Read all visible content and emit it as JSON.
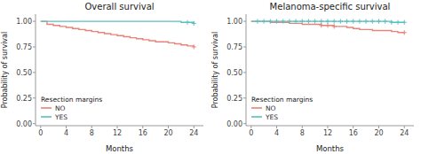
{
  "chart_data": [
    {
      "type": "step",
      "title": "Overall survival",
      "x_label": "Months",
      "y_label": "Probability of survival",
      "x": [
        0,
        1,
        2,
        3,
        4,
        5,
        6,
        7,
        8,
        9,
        10,
        11,
        12,
        13,
        14,
        15,
        16,
        17,
        18,
        19,
        20,
        21,
        22,
        23,
        24
      ],
      "series": [
        {
          "name": "NO",
          "color": "#E8837A",
          "values": [
            1.0,
            0.97,
            0.96,
            0.95,
            0.94,
            0.93,
            0.92,
            0.91,
            0.9,
            0.89,
            0.88,
            0.87,
            0.86,
            0.85,
            0.84,
            0.83,
            0.82,
            0.81,
            0.8,
            0.8,
            0.79,
            0.78,
            0.77,
            0.76,
            0.75
          ],
          "censor_x": [
            24
          ],
          "censor_values": [
            0.75
          ]
        },
        {
          "name": "YES",
          "color": "#5BBFBF",
          "values": [
            1.0,
            1.0,
            1.0,
            1.0,
            1.0,
            1.0,
            1.0,
            1.0,
            1.0,
            1.0,
            1.0,
            1.0,
            1.0,
            1.0,
            1.0,
            1.0,
            1.0,
            1.0,
            1.0,
            1.0,
            1.0,
            1.0,
            0.99,
            0.99,
            0.98
          ],
          "censor_x": [
            23,
            24
          ],
          "censor_values": [
            0.99,
            0.98
          ]
        }
      ],
      "legend_title": "Resection margins",
      "legend": "lower left",
      "xlim": [
        -0.8,
        25.5
      ],
      "xticks": [
        0,
        4,
        8,
        12,
        16,
        20,
        24
      ],
      "ylim": [
        -0.02,
        1.07
      ],
      "yticks": [
        {
          "value": 0.0,
          "label": "0.00"
        },
        {
          "value": 0.25,
          "label": "0.25"
        },
        {
          "value": 0.5,
          "label": "0.50"
        },
        {
          "value": 0.75,
          "label": "0.75"
        },
        {
          "value": 1.0,
          "label": "1.00"
        }
      ]
    },
    {
      "type": "step",
      "title": "Melanoma-specific survival",
      "x_label": "Months",
      "y_label": "Probability of survival",
      "x": [
        0,
        1,
        2,
        3,
        4,
        5,
        6,
        7,
        8,
        9,
        10,
        11,
        12,
        13,
        14,
        15,
        16,
        17,
        18,
        19,
        20,
        21,
        22,
        23,
        24
      ],
      "series": [
        {
          "name": "NO",
          "color": "#E8837A",
          "values": [
            1.0,
            1.0,
            1.0,
            0.99,
            0.99,
            0.99,
            0.98,
            0.98,
            0.97,
            0.97,
            0.97,
            0.96,
            0.96,
            0.95,
            0.95,
            0.94,
            0.93,
            0.92,
            0.92,
            0.91,
            0.91,
            0.91,
            0.9,
            0.89,
            0.89
          ],
          "censor_x": [
            11,
            12,
            13,
            24
          ],
          "censor_values": [
            0.96,
            0.96,
            0.95,
            0.89
          ]
        },
        {
          "name": "YES",
          "color": "#5BBFBF",
          "values": [
            1.0,
            1.0,
            1.0,
            1.0,
            1.0,
            1.0,
            1.0,
            1.0,
            1.0,
            1.0,
            1.0,
            1.0,
            1.0,
            1.0,
            1.0,
            1.0,
            1.0,
            1.0,
            1.0,
            1.0,
            1.0,
            1.0,
            0.99,
            0.99,
            0.99
          ],
          "censor_x": [
            1,
            2,
            3,
            4,
            5,
            6,
            7,
            8,
            9,
            10,
            11,
            12,
            13,
            14,
            15,
            16,
            17,
            18,
            19,
            20,
            21,
            22,
            23,
            24
          ],
          "censor_values": [
            1.0,
            1.0,
            1.0,
            1.0,
            1.0,
            1.0,
            1.0,
            1.0,
            1.0,
            1.0,
            1.0,
            1.0,
            1.0,
            1.0,
            1.0,
            1.0,
            1.0,
            1.0,
            1.0,
            1.0,
            1.0,
            0.99,
            0.99,
            0.99
          ]
        }
      ],
      "legend_title": "Resection margins",
      "legend": "lower left",
      "xlim": [
        -0.8,
        25.5
      ],
      "xticks": [
        0,
        4,
        8,
        12,
        16,
        20,
        24
      ],
      "ylim": [
        -0.02,
        1.07
      ],
      "yticks": [
        {
          "value": 0.0,
          "label": "0.00"
        },
        {
          "value": 0.25,
          "label": "0.25"
        },
        {
          "value": 0.5,
          "label": "0.50"
        },
        {
          "value": 0.75,
          "label": "0.75"
        },
        {
          "value": 1.0,
          "label": "1.00"
        }
      ]
    }
  ]
}
